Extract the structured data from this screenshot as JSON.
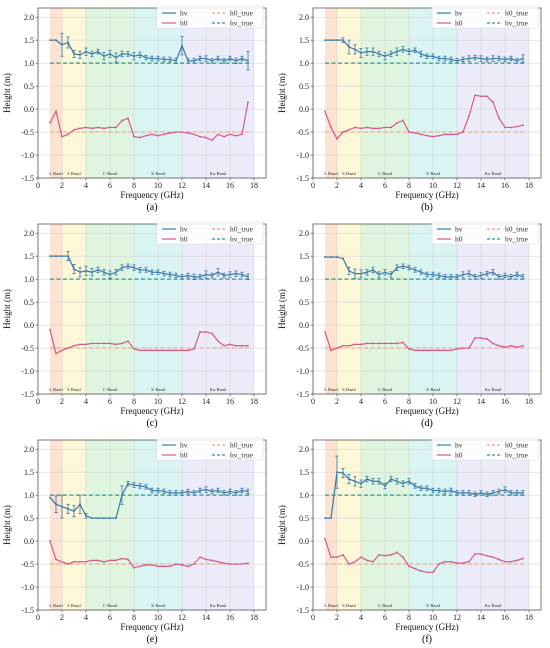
{
  "figure": {
    "axis_labels": {
      "xlabel": "Frequency (GHz)",
      "ylabel": "Height (m)"
    },
    "x_ticks": [
      "0",
      "2",
      "4",
      "6",
      "8",
      "10",
      "12",
      "14",
      "16",
      "18"
    ],
    "y_ticks": [
      "-1.5",
      "-1.0",
      "-0.5",
      "0.0",
      "0.5",
      "1.0",
      "1.5",
      "2.0"
    ],
    "bands": [
      {
        "label": "L Band",
        "range": [
          1,
          2
        ],
        "color": "#fbd9c3"
      },
      {
        "label": "S Band",
        "range": [
          2,
          4
        ],
        "color": "#fbf4c8"
      },
      {
        "label": "C Band",
        "range": [
          4,
          8
        ],
        "color": "#d4f2d4"
      },
      {
        "label": "X Band",
        "range": [
          8,
          12
        ],
        "color": "#cdf0f0"
      },
      {
        "label": "Ku Band",
        "range": [
          12,
          18
        ],
        "color": "#e4e4f8"
      }
    ],
    "legend": [
      "hv",
      "h0",
      "h0_true",
      "hv_true"
    ],
    "colors": {
      "hv": "#3a78a8",
      "h0": "#d45a8a",
      "h0_true": "#e8a07a",
      "hv_true": "#2a9a8a"
    }
  },
  "chart_data": [
    {
      "label": "(a)",
      "type": "line",
      "xlim": [
        0,
        19
      ],
      "ylim": [
        -1.5,
        2.2
      ],
      "x": [
        1,
        1.5,
        2,
        2.5,
        3,
        3.5,
        4,
        4.5,
        5,
        5.5,
        6,
        6.5,
        7,
        7.5,
        8,
        8.5,
        9,
        9.5,
        10,
        10.5,
        11,
        11.5,
        12,
        12.5,
        13,
        13.5,
        14,
        14.5,
        15,
        15.5,
        16,
        16.5,
        17,
        17.5
      ],
      "series": [
        {
          "name": "hv",
          "values": [
            1.5,
            1.5,
            1.4,
            1.45,
            1.2,
            1.18,
            1.25,
            1.2,
            1.25,
            1.15,
            1.2,
            1.12,
            1.2,
            1.2,
            1.15,
            1.18,
            1.12,
            1.1,
            1.1,
            1.08,
            1.08,
            1.05,
            1.38,
            1.05,
            1.05,
            1.1,
            1.1,
            1.05,
            1.1,
            1.05,
            1.1,
            1.05,
            1.1,
            1.05
          ],
          "err": [
            0,
            0,
            0.25,
            0.12,
            0.08,
            0.08,
            0.08,
            0.06,
            0.05,
            0.08,
            0.08,
            0.1,
            0.06,
            0.05,
            0.08,
            0.06,
            0.05,
            0.05,
            0.05,
            0.05,
            0.05,
            0.06,
            0.2,
            0.05,
            0.05,
            0.05,
            0.06,
            0.05,
            0.05,
            0.05,
            0.05,
            0.06,
            0.05,
            0.2
          ]
        },
        {
          "name": "h0",
          "values": [
            -0.3,
            -0.05,
            -0.6,
            -0.55,
            -0.45,
            -0.42,
            -0.4,
            -0.42,
            -0.4,
            -0.42,
            -0.4,
            -0.4,
            -0.25,
            -0.2,
            -0.6,
            -0.62,
            -0.58,
            -0.55,
            -0.58,
            -0.55,
            -0.52,
            -0.5,
            -0.5,
            -0.52,
            -0.55,
            -0.6,
            -0.62,
            -0.68,
            -0.55,
            -0.6,
            -0.55,
            -0.58,
            -0.55,
            0.15
          ]
        },
        {
          "name": "h0_true",
          "value": -0.5
        },
        {
          "name": "hv_true",
          "value": 1.0
        }
      ]
    },
    {
      "label": "(b)",
      "type": "line",
      "xlim": [
        0,
        19
      ],
      "ylim": [
        -1.5,
        2.2
      ],
      "x": [
        1,
        1.5,
        2,
        2.5,
        3,
        3.5,
        4,
        4.5,
        5,
        5.5,
        6,
        6.5,
        7,
        7.5,
        8,
        8.5,
        9,
        9.5,
        10,
        10.5,
        11,
        11.5,
        12,
        12.5,
        13,
        13.5,
        14,
        14.5,
        15,
        15.5,
        16,
        16.5,
        17,
        17.5
      ],
      "series": [
        {
          "name": "hv",
          "values": [
            1.5,
            1.5,
            1.5,
            1.5,
            1.35,
            1.3,
            1.22,
            1.25,
            1.25,
            1.2,
            1.15,
            1.2,
            1.25,
            1.3,
            1.25,
            1.28,
            1.2,
            1.15,
            1.15,
            1.1,
            1.1,
            1.08,
            1.05,
            1.08,
            1.1,
            1.12,
            1.1,
            1.08,
            1.1,
            1.1,
            1.08,
            1.1,
            1.05,
            1.1
          ],
          "err": [
            0,
            0,
            0,
            0.05,
            0.15,
            0.1,
            0.1,
            0.08,
            0.08,
            0.06,
            0.08,
            0.06,
            0.08,
            0.06,
            0.06,
            0.05,
            0.06,
            0.05,
            0.05,
            0.05,
            0.05,
            0.05,
            0.05,
            0.05,
            0.06,
            0.05,
            0.06,
            0.05,
            0.06,
            0.05,
            0.05,
            0.05,
            0.05,
            0.08
          ]
        },
        {
          "name": "h0",
          "values": [
            -0.05,
            -0.4,
            -0.65,
            -0.5,
            -0.45,
            -0.4,
            -0.42,
            -0.4,
            -0.42,
            -0.42,
            -0.4,
            -0.4,
            -0.3,
            -0.25,
            -0.5,
            -0.52,
            -0.55,
            -0.58,
            -0.6,
            -0.58,
            -0.55,
            -0.55,
            -0.55,
            -0.5,
            -0.15,
            0.3,
            0.28,
            0.28,
            0.15,
            -0.2,
            -0.4,
            -0.4,
            -0.38,
            -0.35
          ]
        },
        {
          "name": "h0_true",
          "value": -0.5
        },
        {
          "name": "hv_true",
          "value": 1.0
        }
      ]
    },
    {
      "label": "(c)",
      "type": "line",
      "xlim": [
        0,
        19
      ],
      "ylim": [
        -1.5,
        2.2
      ],
      "x": [
        1,
        1.5,
        2,
        2.5,
        3,
        3.5,
        4,
        4.5,
        5,
        5.5,
        6,
        6.5,
        7,
        7.5,
        8,
        8.5,
        9,
        9.5,
        10,
        10.5,
        11,
        11.5,
        12,
        12.5,
        13,
        13.5,
        14,
        14.5,
        15,
        15.5,
        16,
        16.5,
        17,
        17.5
      ],
      "series": [
        {
          "name": "hv",
          "values": [
            1.5,
            1.5,
            1.5,
            1.5,
            1.22,
            1.15,
            1.18,
            1.15,
            1.2,
            1.15,
            1.1,
            1.15,
            1.25,
            1.28,
            1.25,
            1.2,
            1.2,
            1.15,
            1.15,
            1.12,
            1.1,
            1.08,
            1.05,
            1.08,
            1.05,
            1.05,
            1.1,
            1.08,
            1.15,
            1.08,
            1.1,
            1.12,
            1.1,
            1.05
          ],
          "err": [
            0,
            0,
            0,
            0.1,
            0.1,
            0.1,
            0.1,
            0.08,
            0.06,
            0.06,
            0.08,
            0.06,
            0.06,
            0.05,
            0.06,
            0.05,
            0.05,
            0.05,
            0.05,
            0.05,
            0.05,
            0.05,
            0.05,
            0.05,
            0.06,
            0.05,
            0.08,
            0.05,
            0.08,
            0.05,
            0.06,
            0.06,
            0.05,
            0.06
          ]
        },
        {
          "name": "h0",
          "values": [
            -0.1,
            -0.62,
            -0.55,
            -0.5,
            -0.45,
            -0.42,
            -0.42,
            -0.4,
            -0.4,
            -0.4,
            -0.4,
            -0.42,
            -0.4,
            -0.35,
            -0.52,
            -0.55,
            -0.55,
            -0.55,
            -0.55,
            -0.55,
            -0.55,
            -0.55,
            -0.55,
            -0.55,
            -0.52,
            -0.15,
            -0.15,
            -0.18,
            -0.35,
            -0.45,
            -0.42,
            -0.45,
            -0.45,
            -0.45
          ]
        },
        {
          "name": "h0_true",
          "value": -0.5
        },
        {
          "name": "hv_true",
          "value": 1.0
        }
      ]
    },
    {
      "label": "(d)",
      "type": "line",
      "xlim": [
        0,
        19
      ],
      "ylim": [
        -1.5,
        2.2
      ],
      "x": [
        1,
        1.5,
        2,
        2.5,
        3,
        3.5,
        4,
        4.5,
        5,
        5.5,
        6,
        6.5,
        7,
        7.5,
        8,
        8.5,
        9,
        9.5,
        10,
        10.5,
        11,
        11.5,
        12,
        12.5,
        13,
        13.5,
        14,
        14.5,
        15,
        15.5,
        16,
        16.5,
        17,
        17.5
      ],
      "series": [
        {
          "name": "hv",
          "values": [
            1.48,
            1.48,
            1.48,
            1.45,
            1.18,
            1.12,
            1.12,
            1.15,
            1.2,
            1.1,
            1.15,
            1.1,
            1.25,
            1.28,
            1.25,
            1.2,
            1.15,
            1.1,
            1.1,
            1.08,
            1.05,
            1.05,
            1.05,
            1.1,
            1.12,
            1.05,
            1.08,
            1.12,
            1.15,
            1.05,
            1.08,
            1.05,
            1.1,
            1.05
          ],
          "err": [
            0,
            0,
            0,
            0,
            0.08,
            0.1,
            0.08,
            0.06,
            0.06,
            0.06,
            0.06,
            0.06,
            0.06,
            0.05,
            0.05,
            0.05,
            0.05,
            0.05,
            0.05,
            0.05,
            0.05,
            0.05,
            0.05,
            0.06,
            0.06,
            0.05,
            0.06,
            0.05,
            0.06,
            0.05,
            0.05,
            0.05,
            0.05,
            0.05
          ]
        },
        {
          "name": "h0",
          "values": [
            -0.15,
            -0.55,
            -0.5,
            -0.45,
            -0.45,
            -0.42,
            -0.42,
            -0.4,
            -0.4,
            -0.4,
            -0.4,
            -0.4,
            -0.4,
            -0.38,
            -0.52,
            -0.55,
            -0.55,
            -0.55,
            -0.55,
            -0.55,
            -0.55,
            -0.55,
            -0.52,
            -0.5,
            -0.5,
            -0.28,
            -0.28,
            -0.3,
            -0.4,
            -0.45,
            -0.48,
            -0.45,
            -0.48,
            -0.45
          ]
        },
        {
          "name": "h0_true",
          "value": -0.5
        },
        {
          "name": "hv_true",
          "value": 1.0
        }
      ]
    },
    {
      "label": "(e)",
      "type": "line",
      "xlim": [
        0,
        19
      ],
      "ylim": [
        -1.5,
        2.2
      ],
      "x": [
        1,
        1.5,
        2,
        2.5,
        3,
        3.5,
        4,
        4.5,
        5,
        5.5,
        6,
        6.5,
        7,
        7.5,
        8,
        8.5,
        9,
        9.5,
        10,
        10.5,
        11,
        11.5,
        12,
        12.5,
        13,
        13.5,
        14,
        14.5,
        15,
        15.5,
        16,
        16.5,
        17,
        17.5
      ],
      "series": [
        {
          "name": "hv",
          "values": [
            0.95,
            0.8,
            0.75,
            0.7,
            0.65,
            0.8,
            0.55,
            0.5,
            0.5,
            0.5,
            0.5,
            0.5,
            1.0,
            1.25,
            1.22,
            1.2,
            1.18,
            1.1,
            1.1,
            1.08,
            1.05,
            1.05,
            1.05,
            1.08,
            1.05,
            1.1,
            1.12,
            1.08,
            1.1,
            1.05,
            1.08,
            1.05,
            1.1,
            1.08
          ],
          "err": [
            0,
            0.18,
            0.25,
            0.1,
            0.12,
            0.2,
            0.05,
            0,
            0,
            0,
            0,
            0,
            0.2,
            0.05,
            0.05,
            0.05,
            0.05,
            0.05,
            0.05,
            0.05,
            0.05,
            0.05,
            0.05,
            0.05,
            0.05,
            0.05,
            0.06,
            0.05,
            0.05,
            0.05,
            0.05,
            0.05,
            0.05,
            0.05
          ]
        },
        {
          "name": "h0",
          "values": [
            0.0,
            -0.4,
            -0.45,
            -0.5,
            -0.45,
            -0.45,
            -0.45,
            -0.42,
            -0.42,
            -0.45,
            -0.42,
            -0.42,
            -0.38,
            -0.4,
            -0.58,
            -0.55,
            -0.52,
            -0.52,
            -0.55,
            -0.55,
            -0.55,
            -0.5,
            -0.52,
            -0.55,
            -0.5,
            -0.35,
            -0.4,
            -0.42,
            -0.45,
            -0.48,
            -0.5,
            -0.5,
            -0.5,
            -0.48
          ]
        },
        {
          "name": "h0_true",
          "value": -0.5
        },
        {
          "name": "hv_true",
          "value": 1.0
        }
      ]
    },
    {
      "label": "(f)",
      "type": "line",
      "xlim": [
        0,
        19
      ],
      "ylim": [
        -1.5,
        2.2
      ],
      "x": [
        1,
        1.5,
        2,
        2.5,
        3,
        3.5,
        4,
        4.5,
        5,
        5.5,
        6,
        6.5,
        7,
        7.5,
        8,
        8.5,
        9,
        9.5,
        10,
        10.5,
        11,
        11.5,
        12,
        12.5,
        13,
        13.5,
        14,
        14.5,
        15,
        15.5,
        16,
        16.5,
        17,
        17.5
      ],
      "series": [
        {
          "name": "hv",
          "values": [
            0.5,
            0.5,
            1.5,
            1.48,
            1.35,
            1.3,
            1.25,
            1.35,
            1.3,
            1.3,
            1.2,
            1.35,
            1.3,
            1.25,
            1.3,
            1.2,
            1.15,
            1.15,
            1.1,
            1.1,
            1.08,
            1.1,
            1.05,
            1.05,
            1.05,
            1.02,
            1.05,
            1.02,
            1.05,
            1.08,
            1.12,
            1.05,
            1.05,
            1.05
          ],
          "err": [
            0,
            0,
            0.35,
            0.1,
            0.1,
            0.1,
            0.08,
            0.06,
            0.06,
            0.06,
            0.06,
            0.06,
            0.06,
            0.06,
            0.06,
            0.05,
            0.05,
            0.05,
            0.05,
            0.05,
            0.05,
            0.05,
            0.05,
            0.05,
            0.05,
            0.05,
            0.05,
            0.05,
            0.05,
            0.05,
            0.06,
            0.05,
            0.05,
            0.05
          ]
        },
        {
          "name": "h0",
          "values": [
            0.05,
            -0.35,
            -0.35,
            -0.3,
            -0.5,
            -0.45,
            -0.35,
            -0.42,
            -0.45,
            -0.3,
            -0.32,
            -0.3,
            -0.25,
            -0.35,
            -0.55,
            -0.6,
            -0.65,
            -0.68,
            -0.68,
            -0.5,
            -0.45,
            -0.45,
            -0.48,
            -0.48,
            -0.45,
            -0.28,
            -0.28,
            -0.32,
            -0.35,
            -0.4,
            -0.45,
            -0.45,
            -0.42,
            -0.38
          ]
        },
        {
          "name": "h0_true",
          "value": -0.5
        },
        {
          "name": "hv_true",
          "value": 1.0
        }
      ]
    }
  ]
}
